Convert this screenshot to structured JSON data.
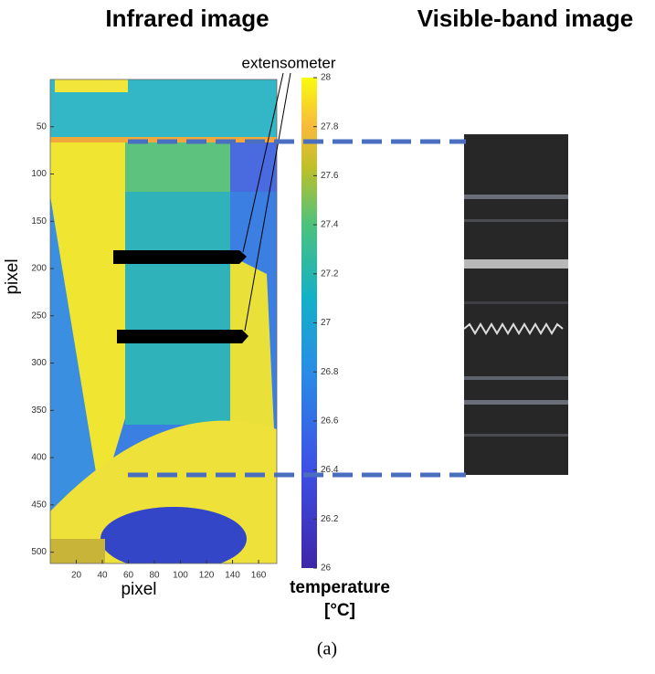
{
  "titles": {
    "left": "Infrared image",
    "right": "Visible-band image"
  },
  "infrared": {
    "xlabel": "pixel",
    "ylabel": "pixel",
    "xlim": [
      0,
      174
    ],
    "ylim": [
      0,
      512
    ],
    "xticks": [
      20,
      40,
      60,
      80,
      100,
      120,
      140,
      160
    ],
    "yticks": [
      50,
      100,
      150,
      200,
      250,
      300,
      350,
      400,
      450,
      500
    ]
  },
  "colorbar": {
    "label": "temperature",
    "unit": "[°C]",
    "lim": [
      26,
      28
    ],
    "ticks": [
      26,
      26.2,
      26.4,
      26.6,
      26.8,
      27,
      27.2,
      27.4,
      27.6,
      27.8,
      28
    ]
  },
  "annotation": "extensometer",
  "caption": "(a)"
}
